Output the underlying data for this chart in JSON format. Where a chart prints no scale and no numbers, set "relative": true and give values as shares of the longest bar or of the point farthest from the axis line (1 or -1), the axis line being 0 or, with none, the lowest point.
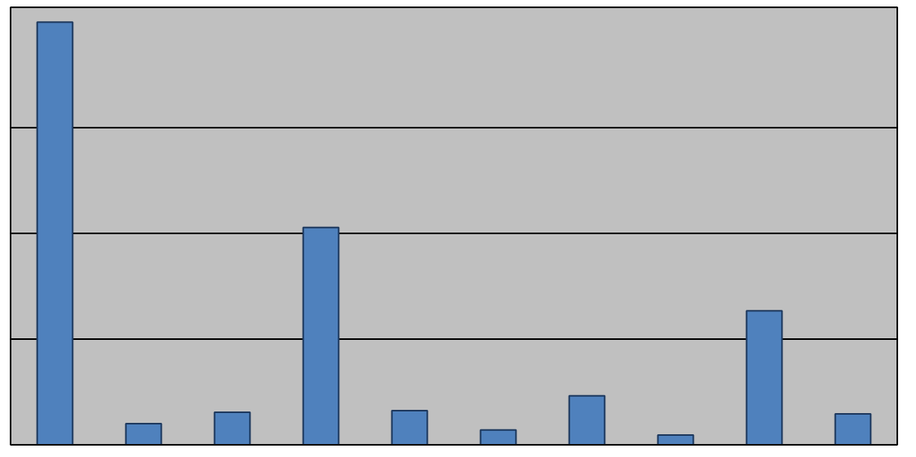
{
  "chart_data": {
    "type": "bar",
    "relative": true,
    "categories": [
      null,
      null,
      null,
      null,
      null,
      null,
      null,
      null,
      null,
      null
    ],
    "values": [
      1,
      0.05,
      0.077,
      0.514,
      0.081,
      0.035,
      0.116,
      0.023,
      0.317,
      0.073
    ],
    "color": "#4f81bd",
    "grid": "y"
  }
}
